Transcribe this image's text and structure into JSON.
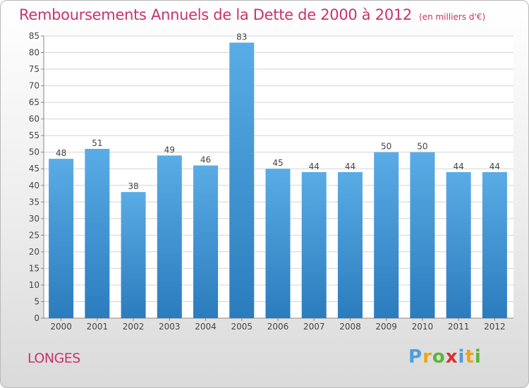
{
  "chart_data": {
    "type": "bar",
    "title": "Remboursements Annuels de la Dette de 2000 à 2012",
    "subtitle": "(en milliers d'€)",
    "categories": [
      "2000",
      "2001",
      "2002",
      "2003",
      "2004",
      "2005",
      "2006",
      "2007",
      "2008",
      "2009",
      "2010",
      "2011",
      "2012"
    ],
    "values": [
      48,
      51,
      38,
      49,
      46,
      83,
      45,
      44,
      44,
      50,
      50,
      44,
      44
    ],
    "ylim": [
      0,
      85
    ],
    "yticks": [
      0,
      5,
      10,
      15,
      20,
      25,
      30,
      35,
      40,
      45,
      50,
      55,
      60,
      65,
      70,
      75,
      80,
      85
    ],
    "grid": true,
    "bar_color_top": "#5aace6",
    "bar_color_bottom": "#2a7cbd"
  },
  "place_label": "LONGES",
  "logo": {
    "letters": [
      "P",
      "r",
      "o",
      "x",
      "i",
      "t",
      "i"
    ],
    "colors": [
      "#4a9ee0",
      "#f0a21d",
      "#5ab53a",
      "#d8302f",
      "#4a9ee0",
      "#f0a21d",
      "#5ab53a"
    ]
  }
}
